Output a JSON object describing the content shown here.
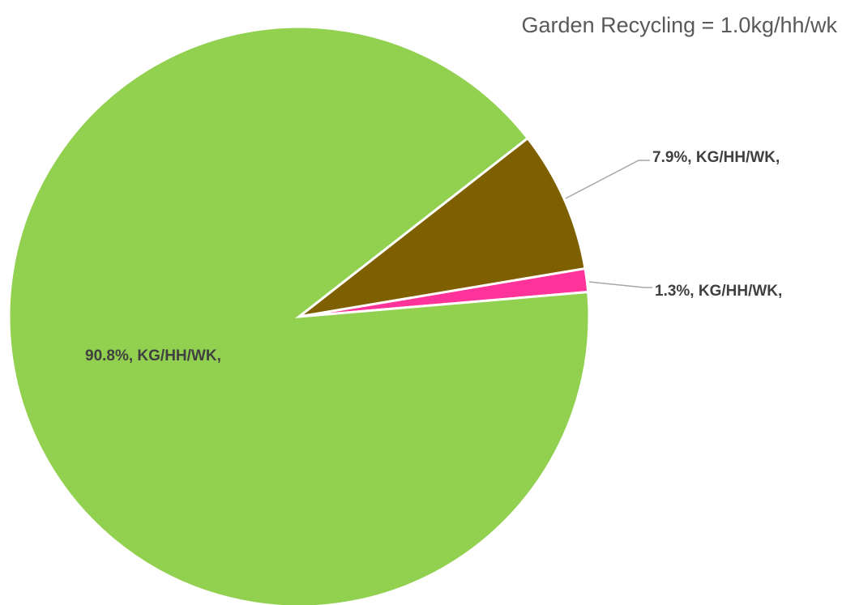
{
  "chart_data": {
    "type": "pie",
    "title": "Garden Recycling = 1.0kg/hh/wk",
    "categories": [
      null,
      null,
      null
    ],
    "values": [
      7.9,
      1.3,
      90.8
    ],
    "value_labels": [
      "7.9%, KG/HH/WK,",
      "1.3%, KG/HH/WK,",
      "90.8%, KG/HH/WK,"
    ],
    "colors": [
      "#7f6000",
      "#ff3399",
      "#92d050"
    ]
  }
}
